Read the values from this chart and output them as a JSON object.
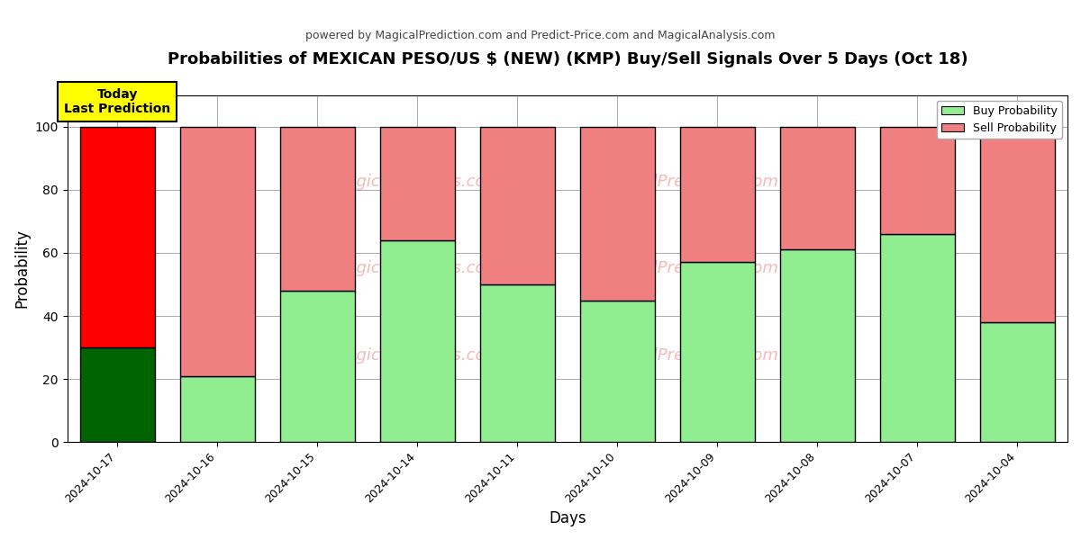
{
  "title": "Probabilities of MEXICAN PESO/US $ (NEW) (KMP) Buy/Sell Signals Over 5 Days (Oct 18)",
  "subtitle": "powered by MagicalPrediction.com and Predict-Price.com and MagicalAnalysis.com",
  "xlabel": "Days",
  "ylabel": "Probability",
  "categories": [
    "2024-10-17",
    "2024-10-16",
    "2024-10-15",
    "2024-10-14",
    "2024-10-11",
    "2024-10-10",
    "2024-10-09",
    "2024-10-08",
    "2024-10-07",
    "2024-10-04"
  ],
  "buy_values": [
    30,
    21,
    48,
    64,
    50,
    45,
    57,
    61,
    66,
    38
  ],
  "sell_values": [
    70,
    79,
    52,
    36,
    50,
    55,
    43,
    39,
    34,
    62
  ],
  "buy_color_today": "#006400",
  "sell_color_today": "#FF0000",
  "buy_color_rest": "#90EE90",
  "sell_color_rest": "#F08080",
  "today_annotation_text": "Today\nLast Prediction",
  "today_annotation_bg": "#FFFF00",
  "legend_buy_label": "Buy Probability",
  "legend_sell_label": "Sell Probability",
  "ylim": [
    0,
    110
  ],
  "dashed_line_y": 110,
  "background_color": "#ffffff",
  "grid_color": "#aaaaaa"
}
